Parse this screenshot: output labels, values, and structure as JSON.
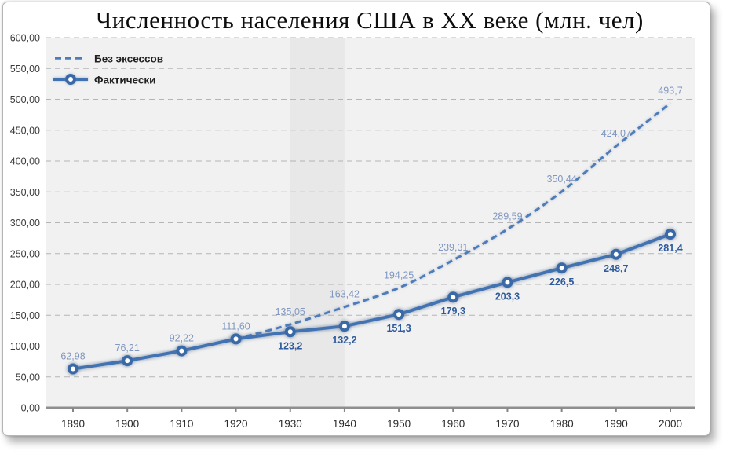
{
  "chart_data": {
    "type": "line",
    "title": "Численность населения США в XX веке (млн. чел)",
    "xlabel": "",
    "ylabel": "",
    "x": [
      1890,
      1900,
      1910,
      1920,
      1930,
      1940,
      1950,
      1960,
      1970,
      1980,
      1990,
      2000
    ],
    "x_tick_labels": [
      "1890",
      "1900",
      "1910",
      "1920",
      "1930",
      "1940",
      "1950",
      "1960",
      "1970",
      "1980",
      "1990",
      "2000"
    ],
    "ylim": [
      0,
      600
    ],
    "ytick_step": 50,
    "y_tick_labels": [
      "0,00",
      "50,00",
      "100,00",
      "150,00",
      "200,00",
      "250,00",
      "300,00",
      "350,00",
      "400,00",
      "450,00",
      "500,00",
      "550,00",
      "600,00"
    ],
    "grid": "horizontal-dashed",
    "legend_position": "top-left",
    "plot_bg_color": "#f1f1f1",
    "gridline_color": "#b5b5b5",
    "axis_color": "#8f8f8f",
    "shaded_band": {
      "x_from": 1930,
      "x_to": 1940,
      "color": "#e8e8e8"
    },
    "series": [
      {
        "name": "Без эксессов",
        "style": "dashed",
        "smooth": true,
        "color": "#4d7cbb",
        "label_color": "#8097c1",
        "line_from_index": 3,
        "values": [
          62.98,
          76.21,
          92.22,
          111.6,
          135.05,
          163.42,
          194.25,
          239.31,
          289.59,
          350.44,
          424.07,
          493.7
        ],
        "labels": [
          "62,98",
          "76,21",
          "92,22",
          "111,60",
          "135,05",
          "163,42",
          "194,25",
          "239,31",
          "289,59",
          "350,44",
          "424,07",
          "493,7"
        ]
      },
      {
        "name": "Фактически",
        "style": "solid-markers",
        "smooth": false,
        "color": "#4173b2",
        "marker_ring_color": "#3a69a8",
        "marker_fill": "#ffffff",
        "label_color": "#2d5b9e",
        "line_from_index": 0,
        "values": [
          62.98,
          76.21,
          92.22,
          111.6,
          123.2,
          132.2,
          151.3,
          179.3,
          203.3,
          226.5,
          248.7,
          281.4
        ],
        "labels": [
          null,
          null,
          null,
          null,
          "123,2",
          "132,2",
          "151,3",
          "179,3",
          "203,3",
          "226,5",
          "248,7",
          "281,4"
        ]
      }
    ]
  }
}
